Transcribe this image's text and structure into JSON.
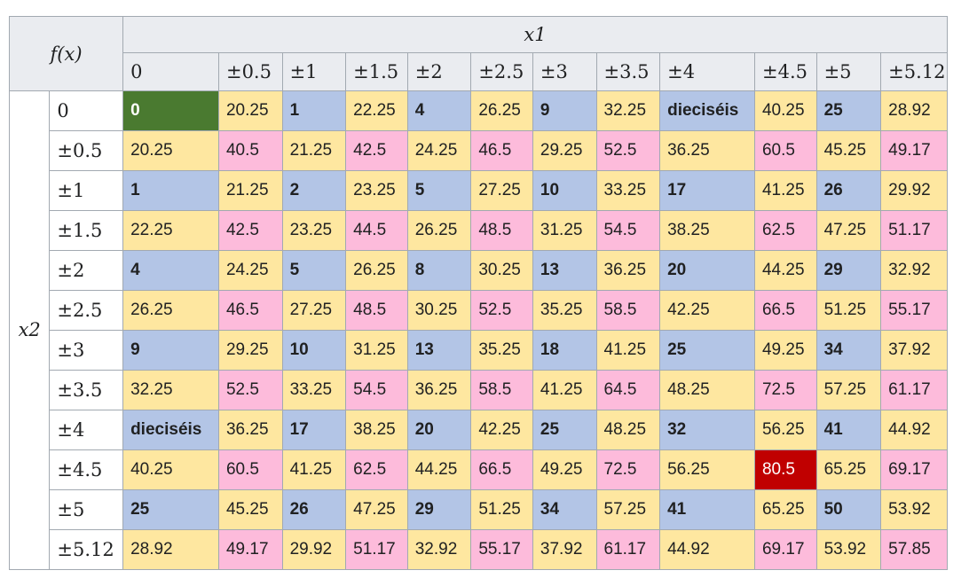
{
  "header": {
    "fx_label": "f(x)",
    "x1_label": "x1",
    "x2_label": "x2",
    "columns": [
      "0",
      "±0.5",
      "±1",
      "±1.5",
      "±2",
      "±2.5",
      "±3",
      "±3.5",
      "±4",
      "±4.5",
      "±5",
      "±5.12"
    ]
  },
  "rows": [
    {
      "label": "0",
      "cells": [
        [
          "0",
          "green"
        ],
        [
          "20.25",
          "yellow"
        ],
        [
          "1",
          "blue"
        ],
        [
          "22.25",
          "yellow"
        ],
        [
          "4",
          "blue"
        ],
        [
          "26.25",
          "yellow"
        ],
        [
          "9",
          "blue"
        ],
        [
          "32.25",
          "yellow"
        ],
        [
          "dieciséis",
          "blue"
        ],
        [
          "40.25",
          "yellow"
        ],
        [
          "25",
          "blue"
        ],
        [
          "28.92",
          "yellow"
        ]
      ]
    },
    {
      "label": "±0.5",
      "cells": [
        [
          "20.25",
          "yellow"
        ],
        [
          "40.5",
          "pink"
        ],
        [
          "21.25",
          "yellow"
        ],
        [
          "42.5",
          "pink"
        ],
        [
          "24.25",
          "yellow"
        ],
        [
          "46.5",
          "pink"
        ],
        [
          "29.25",
          "yellow"
        ],
        [
          "52.5",
          "pink"
        ],
        [
          "36.25",
          "yellow"
        ],
        [
          "60.5",
          "pink"
        ],
        [
          "45.25",
          "yellow"
        ],
        [
          "49.17",
          "pink"
        ]
      ]
    },
    {
      "label": "±1",
      "cells": [
        [
          "1",
          "blue"
        ],
        [
          "21.25",
          "yellow"
        ],
        [
          "2",
          "blue"
        ],
        [
          "23.25",
          "yellow"
        ],
        [
          "5",
          "blue"
        ],
        [
          "27.25",
          "yellow"
        ],
        [
          "10",
          "blue"
        ],
        [
          "33.25",
          "yellow"
        ],
        [
          "17",
          "blue"
        ],
        [
          "41.25",
          "yellow"
        ],
        [
          "26",
          "blue"
        ],
        [
          "29.92",
          "yellow"
        ]
      ]
    },
    {
      "label": "±1.5",
      "cells": [
        [
          "22.25",
          "yellow"
        ],
        [
          "42.5",
          "pink"
        ],
        [
          "23.25",
          "yellow"
        ],
        [
          "44.5",
          "pink"
        ],
        [
          "26.25",
          "yellow"
        ],
        [
          "48.5",
          "pink"
        ],
        [
          "31.25",
          "yellow"
        ],
        [
          "54.5",
          "pink"
        ],
        [
          "38.25",
          "yellow"
        ],
        [
          "62.5",
          "pink"
        ],
        [
          "47.25",
          "yellow"
        ],
        [
          "51.17",
          "pink"
        ]
      ]
    },
    {
      "label": "±2",
      "cells": [
        [
          "4",
          "blue"
        ],
        [
          "24.25",
          "yellow"
        ],
        [
          "5",
          "blue"
        ],
        [
          "26.25",
          "yellow"
        ],
        [
          "8",
          "blue"
        ],
        [
          "30.25",
          "yellow"
        ],
        [
          "13",
          "blue"
        ],
        [
          "36.25",
          "yellow"
        ],
        [
          "20",
          "blue"
        ],
        [
          "44.25",
          "yellow"
        ],
        [
          "29",
          "blue"
        ],
        [
          "32.92",
          "yellow"
        ]
      ]
    },
    {
      "label": "±2.5",
      "cells": [
        [
          "26.25",
          "yellow"
        ],
        [
          "46.5",
          "pink"
        ],
        [
          "27.25",
          "yellow"
        ],
        [
          "48.5",
          "pink"
        ],
        [
          "30.25",
          "yellow"
        ],
        [
          "52.5",
          "pink"
        ],
        [
          "35.25",
          "yellow"
        ],
        [
          "58.5",
          "pink"
        ],
        [
          "42.25",
          "yellow"
        ],
        [
          "66.5",
          "pink"
        ],
        [
          "51.25",
          "yellow"
        ],
        [
          "55.17",
          "pink"
        ]
      ]
    },
    {
      "label": "±3",
      "cells": [
        [
          "9",
          "blue"
        ],
        [
          "29.25",
          "yellow"
        ],
        [
          "10",
          "blue"
        ],
        [
          "31.25",
          "yellow"
        ],
        [
          "13",
          "blue"
        ],
        [
          "35.25",
          "yellow"
        ],
        [
          "18",
          "blue"
        ],
        [
          "41.25",
          "yellow"
        ],
        [
          "25",
          "blue"
        ],
        [
          "49.25",
          "yellow"
        ],
        [
          "34",
          "blue"
        ],
        [
          "37.92",
          "yellow"
        ]
      ]
    },
    {
      "label": "±3.5",
      "cells": [
        [
          "32.25",
          "yellow"
        ],
        [
          "52.5",
          "pink"
        ],
        [
          "33.25",
          "yellow"
        ],
        [
          "54.5",
          "pink"
        ],
        [
          "36.25",
          "yellow"
        ],
        [
          "58.5",
          "pink"
        ],
        [
          "41.25",
          "yellow"
        ],
        [
          "64.5",
          "pink"
        ],
        [
          "48.25",
          "yellow"
        ],
        [
          "72.5",
          "pink"
        ],
        [
          "57.25",
          "yellow"
        ],
        [
          "61.17",
          "pink"
        ]
      ]
    },
    {
      "label": "±4",
      "cells": [
        [
          "dieciséis",
          "blue"
        ],
        [
          "36.25",
          "yellow"
        ],
        [
          "17",
          "blue"
        ],
        [
          "38.25",
          "yellow"
        ],
        [
          "20",
          "blue"
        ],
        [
          "42.25",
          "yellow"
        ],
        [
          "25",
          "blue"
        ],
        [
          "48.25",
          "yellow"
        ],
        [
          "32",
          "blue"
        ],
        [
          "56.25",
          "yellow"
        ],
        [
          "41",
          "blue"
        ],
        [
          "44.92",
          "yellow"
        ]
      ]
    },
    {
      "label": "±4.5",
      "cells": [
        [
          "40.25",
          "yellow"
        ],
        [
          "60.5",
          "pink"
        ],
        [
          "41.25",
          "yellow"
        ],
        [
          "62.5",
          "pink"
        ],
        [
          "44.25",
          "yellow"
        ],
        [
          "66.5",
          "pink"
        ],
        [
          "49.25",
          "yellow"
        ],
        [
          "72.5",
          "pink"
        ],
        [
          "56.25",
          "yellow"
        ],
        [
          "80.5",
          "red"
        ],
        [
          "65.25",
          "yellow"
        ],
        [
          "69.17",
          "pink"
        ]
      ]
    },
    {
      "label": "±5",
      "cells": [
        [
          "25",
          "blue"
        ],
        [
          "45.25",
          "yellow"
        ],
        [
          "26",
          "blue"
        ],
        [
          "47.25",
          "yellow"
        ],
        [
          "29",
          "blue"
        ],
        [
          "51.25",
          "yellow"
        ],
        [
          "34",
          "blue"
        ],
        [
          "57.25",
          "yellow"
        ],
        [
          "41",
          "blue"
        ],
        [
          "65.25",
          "yellow"
        ],
        [
          "50",
          "blue"
        ],
        [
          "53.92",
          "yellow"
        ]
      ]
    },
    {
      "label": "±5.12",
      "cells": [
        [
          "28.92",
          "yellow"
        ],
        [
          "49.17",
          "pink"
        ],
        [
          "29.92",
          "yellow"
        ],
        [
          "51.17",
          "pink"
        ],
        [
          "32.92",
          "yellow"
        ],
        [
          "55.17",
          "pink"
        ],
        [
          "37.92",
          "yellow"
        ],
        [
          "61.17",
          "pink"
        ],
        [
          "44.92",
          "yellow"
        ],
        [
          "69.17",
          "pink"
        ],
        [
          "53.92",
          "yellow"
        ],
        [
          "57.85",
          "pink"
        ]
      ]
    }
  ],
  "colors": {
    "yellow": "#fee7a0",
    "pink": "#fdbbdb",
    "blue": "#b3c5e6",
    "green": "#4a7a30",
    "red": "#c00000",
    "header_bg": "#eaecf0",
    "border": "#a2a9b1"
  }
}
